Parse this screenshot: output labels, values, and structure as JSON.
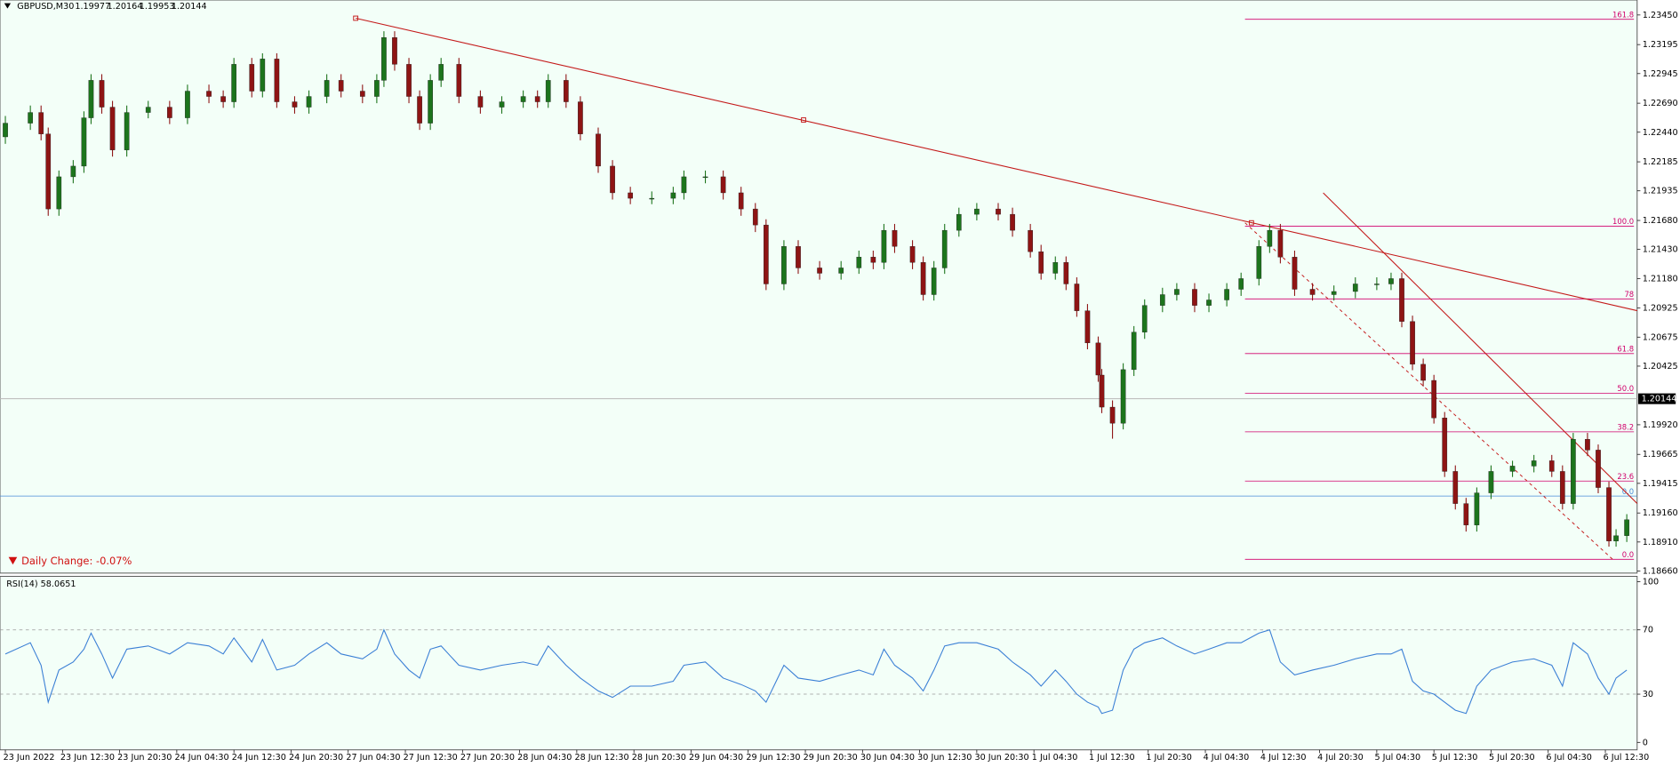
{
  "chart_data": [
    {
      "type": "candlestick",
      "symbol": "GBPUSD,M30",
      "ohlc": [
        1.19977,
        1.20164,
        1.19953,
        1.20144
      ],
      "current_price": 1.20144,
      "daily_change": "Daily Change: -0.07%",
      "bull_color": "#1c741c",
      "bear_color": "#8e1414",
      "xlim": [
        0,
        456
      ],
      "ylim": [
        1.18642,
        1.23579
      ],
      "yticks": [
        {
          "value": 1.2345,
          "label": "1.23450"
        },
        1.23195,
        1.22945,
        {
          "value": 1.2269,
          "label": "1.22690"
        },
        {
          "value": 1.2244,
          "label": "1.22440"
        },
        1.22185,
        1.21935,
        {
          "value": 1.2168,
          "label": "1.21680"
        },
        {
          "value": 1.2143,
          "label": "1.21430"
        },
        {
          "value": 1.2118,
          "label": "1.21180"
        },
        1.20925,
        1.20675,
        1.20425,
        {
          "value": 1.1992,
          "label": "1.19920"
        },
        1.19665,
        1.19415,
        {
          "value": 1.1916,
          "label": "1.19160"
        },
        {
          "value": 1.1891,
          "label": "1.18910"
        },
        {
          "value": 1.1866,
          "label": "1.18660"
        }
      ],
      "xticks": [
        {
          "value": 0,
          "label": "23 Jun 2022"
        },
        {
          "value": 16,
          "label": "23 Jun 12:30"
        },
        {
          "value": 32,
          "label": "23 Jun 20:30"
        },
        {
          "value": 48,
          "label": "24 Jun 04:30"
        },
        {
          "value": 64,
          "label": "24 Jun 12:30"
        },
        {
          "value": 80,
          "label": "24 Jun 20:30"
        },
        {
          "value": 96,
          "label": "27 Jun 04:30"
        },
        {
          "value": 112,
          "label": "27 Jun 12:30"
        },
        {
          "value": 128,
          "label": "27 Jun 20:30"
        },
        {
          "value": 144,
          "label": "28 Jun 04:30"
        },
        {
          "value": 160,
          "label": "28 Jun 12:30"
        },
        {
          "value": 176,
          "label": "28 Jun 20:30"
        },
        {
          "value": 192,
          "label": "29 Jun 04:30"
        },
        {
          "value": 208,
          "label": "29 Jun 12:30"
        },
        {
          "value": 224,
          "label": "29 Jun 20:30"
        },
        {
          "value": 240,
          "label": "30 Jun 04:30"
        },
        {
          "value": 256,
          "label": "30 Jun 12:30"
        },
        {
          "value": 272,
          "label": "30 Jun 20:30"
        },
        {
          "value": 288,
          "label": "1 Jul 04:30"
        },
        {
          "value": 304,
          "label": "1 Jul 12:30"
        },
        {
          "value": 320,
          "label": "1 Jul 20:30"
        },
        {
          "value": 336,
          "label": "4 Jul 04:30"
        },
        {
          "value": 352,
          "label": "4 Jul 12:30"
        },
        {
          "value": 368,
          "label": "4 Jul 20:30"
        },
        {
          "value": 384,
          "label": "5 Jul 04:30"
        },
        {
          "value": 400,
          "label": "5 Jul 12:30"
        },
        {
          "value": 416,
          "label": "5 Jul 20:30"
        },
        {
          "value": 432,
          "label": "6 Jul 04:30"
        },
        {
          "value": 448,
          "label": "6 Jul 12:30"
        }
      ],
      "fib_levels": [
        {
          "label": "161.8",
          "value": 1.23413
        },
        {
          "label": "100.0",
          "value": 1.21631
        },
        {
          "label": "78",
          "value": 1.21004
        },
        {
          "label": "61.8",
          "value": 1.20533
        },
        {
          "label": "50.0",
          "value": 1.20192
        },
        {
          "label": "38.2",
          "value": 1.19859
        },
        {
          "label": "23.6",
          "value": 1.19435
        },
        {
          "label": "0.0",
          "value": 1.18761
        }
      ],
      "blue_level": {
        "label": "0.0",
        "value": 1.19306
      },
      "x": [
        0,
        7,
        10,
        12,
        15,
        19,
        22,
        24,
        27,
        30,
        34,
        40,
        46,
        51,
        57,
        61,
        64,
        69,
        72,
        76,
        81,
        85,
        90,
        94,
        100,
        104,
        106,
        109,
        113,
        116,
        119,
        122,
        127,
        133,
        139,
        145,
        149,
        152,
        157,
        161,
        166,
        170,
        175,
        181,
        187,
        190,
        196,
        201,
        206,
        210,
        213,
        218,
        222,
        228,
        234,
        239,
        243,
        246,
        249,
        254,
        257,
        260,
        263,
        267,
        272,
        278,
        282,
        287,
        290,
        294,
        297,
        300,
        303,
        306,
        307,
        310,
        313,
        316,
        319,
        324,
        328,
        333,
        337,
        342,
        346,
        351,
        354,
        357,
        361,
        366,
        372,
        378,
        384,
        388,
        391,
        394,
        397,
        400,
        403,
        406,
        409,
        412,
        416,
        422,
        428,
        433,
        436,
        439,
        443,
        446,
        449,
        451,
        454
      ],
      "open": [
        1.224,
        1.22518,
        1.2261,
        1.22425,
        1.21779,
        1.22056,
        1.22148,
        1.22564,
        1.22887,
        1.22656,
        1.22287,
        1.2261,
        1.22656,
        1.22564,
        1.22794,
        1.22748,
        1.22702,
        1.23025,
        1.22794,
        1.23071,
        1.22702,
        1.22656,
        1.22748,
        1.22887,
        1.22794,
        1.22748,
        1.22887,
        1.23256,
        1.23025,
        1.22748,
        1.22518,
        1.22887,
        1.23025,
        1.22748,
        1.22656,
        1.22702,
        1.22748,
        1.22702,
        1.22887,
        1.22702,
        1.22425,
        1.22148,
        1.21918,
        1.21871,
        1.21871,
        1.21918,
        1.22056,
        1.22056,
        1.21918,
        1.21779,
        1.21641,
        1.21133,
        1.21456,
        1.21271,
        1.21225,
        1.21271,
        1.21364,
        1.21318,
        1.21595,
        1.21456,
        1.21318,
        1.21041,
        1.21271,
        1.21595,
        1.21733,
        1.21779,
        1.21733,
        1.21595,
        1.2141,
        1.21225,
        1.21318,
        1.21133,
        1.20902,
        1.20625,
        1.20348,
        1.20072,
        1.19933,
        1.20395,
        1.20718,
        1.20948,
        1.21041,
        1.21087,
        1.20948,
        1.20995,
        1.21087,
        1.21179,
        1.21456,
        1.21595,
        1.21364,
        1.21087,
        1.21041,
        1.21068,
        1.21133,
        1.21133,
        1.21179,
        1.2081,
        1.20441,
        1.20302,
        1.19979,
        1.19518,
        1.19241,
        1.19056,
        1.19333,
        1.19518,
        1.19564,
        1.1961,
        1.19518,
        1.19241,
        1.19795,
        1.19702,
        1.19379,
        1.18918,
        1.18964
      ],
      "high": [
        1.2258,
        1.2267,
        1.2267,
        1.2248,
        1.2211,
        1.222,
        1.2262,
        1.2294,
        1.2294,
        1.2271,
        1.2267,
        1.2271,
        1.2271,
        1.2285,
        1.2285,
        1.228,
        1.2308,
        1.2308,
        1.2312,
        1.2312,
        1.2275,
        1.228,
        1.2294,
        1.2294,
        1.2285,
        1.2294,
        1.2331,
        1.2331,
        1.2308,
        1.228,
        1.2294,
        1.2308,
        1.2308,
        1.228,
        1.2275,
        1.228,
        1.228,
        1.2294,
        1.2294,
        1.2275,
        1.2248,
        1.222,
        1.2197,
        1.2193,
        1.2197,
        1.2211,
        1.2211,
        1.2211,
        1.2197,
        1.2183,
        1.2169,
        1.2151,
        1.2151,
        1.2133,
        1.2133,
        1.2142,
        1.2142,
        1.2165,
        1.2165,
        1.2151,
        1.2137,
        1.2133,
        1.2165,
        1.2179,
        1.2183,
        1.2183,
        1.2179,
        1.2165,
        1.2147,
        1.2137,
        1.2137,
        1.2119,
        1.2096,
        1.2068,
        1.204,
        1.2013,
        1.2045,
        1.2077,
        1.21,
        1.211,
        1.2114,
        1.2114,
        1.2105,
        1.2114,
        1.2123,
        1.2151,
        1.2165,
        1.2165,
        1.2142,
        1.2114,
        1.2112,
        1.2119,
        1.2119,
        1.2123,
        1.2123,
        1.2086,
        1.2049,
        1.2035,
        1.2003,
        1.1957,
        1.1929,
        1.1938,
        1.1957,
        1.1961,
        1.1966,
        1.1966,
        1.1957,
        1.1985,
        1.1985,
        1.1975,
        1.1943,
        1.1902,
        1.1915
      ],
      "low": [
        1.2234,
        1.2246,
        1.2237,
        1.2172,
        1.2172,
        1.22,
        1.2209,
        1.2251,
        1.226,
        1.2223,
        1.2223,
        1.2256,
        1.2251,
        1.2251,
        1.2269,
        1.2265,
        1.2265,
        1.2274,
        1.2274,
        1.2265,
        1.226,
        1.226,
        1.2269,
        1.2274,
        1.2269,
        1.2269,
        1.2283,
        1.2297,
        1.2269,
        1.2246,
        1.2246,
        1.2283,
        1.2269,
        1.226,
        1.226,
        1.2265,
        1.2265,
        1.2265,
        1.2265,
        1.2237,
        1.2209,
        1.2186,
        1.2182,
        1.2182,
        1.2182,
        1.2186,
        1.22,
        1.2186,
        1.2172,
        1.2158,
        1.2108,
        1.2108,
        1.2122,
        1.2117,
        1.2117,
        1.2122,
        1.2126,
        1.2126,
        1.214,
        1.2126,
        1.2099,
        1.2099,
        1.2122,
        1.2154,
        1.2168,
        1.2168,
        1.2154,
        1.2136,
        1.2117,
        1.2117,
        1.2108,
        1.2085,
        1.2057,
        1.2029,
        1.2002,
        1.198,
        1.1988,
        1.2034,
        1.2066,
        1.2089,
        1.2099,
        1.2089,
        1.2089,
        1.2094,
        1.2103,
        1.2112,
        1.214,
        1.2131,
        1.2103,
        1.2099,
        1.2099,
        1.2101,
        1.2108,
        1.2108,
        1.2076,
        1.2039,
        1.2025,
        1.1993,
        1.1947,
        1.1919,
        1.19,
        1.19,
        1.1928,
        1.1947,
        1.1951,
        1.1947,
        1.1919,
        1.1919,
        1.1965,
        1.1933,
        1.1887,
        1.1887,
        1.1891
      ],
      "close": [
        1.22518,
        1.2261,
        1.22425,
        1.21779,
        1.22056,
        1.22148,
        1.22564,
        1.22887,
        1.22656,
        1.22287,
        1.2261,
        1.22656,
        1.22564,
        1.22794,
        1.22748,
        1.22702,
        1.23025,
        1.22794,
        1.23071,
        1.22702,
        1.22656,
        1.22748,
        1.22887,
        1.22794,
        1.22748,
        1.22887,
        1.23256,
        1.23025,
        1.22748,
        1.22518,
        1.22887,
        1.23025,
        1.22748,
        1.22656,
        1.22702,
        1.22748,
        1.22702,
        1.22887,
        1.22702,
        1.22425,
        1.22148,
        1.21918,
        1.21871,
        1.21871,
        1.21918,
        1.22056,
        1.22056,
        1.21918,
        1.21779,
        1.21641,
        1.21133,
        1.21456,
        1.21271,
        1.21225,
        1.21271,
        1.21364,
        1.21318,
        1.21595,
        1.21456,
        1.21318,
        1.21041,
        1.21271,
        1.21595,
        1.21733,
        1.21779,
        1.21733,
        1.21595,
        1.2141,
        1.21225,
        1.21318,
        1.21133,
        1.20902,
        1.20625,
        1.20348,
        1.20072,
        1.19933,
        1.20395,
        1.20718,
        1.20948,
        1.21041,
        1.21087,
        1.20948,
        1.20995,
        1.21087,
        1.21179,
        1.21456,
        1.21595,
        1.21364,
        1.21087,
        1.21041,
        1.21068,
        1.21133,
        1.21133,
        1.21179,
        1.2081,
        1.20441,
        1.20302,
        1.19979,
        1.19518,
        1.19241,
        1.19056,
        1.19333,
        1.19518,
        1.19564,
        1.1961,
        1.19518,
        1.19241,
        1.19795,
        1.19702,
        1.19379,
        1.18918,
        1.18964,
        1.19102
      ]
    },
    {
      "type": "line",
      "label": "RSI(14) 58.0651",
      "color": "#3a7fd5",
      "ylim": [
        0,
        100
      ],
      "yticks": [
        100,
        70,
        30,
        0
      ],
      "levels": [
        70,
        30
      ],
      "values": [
        55,
        62,
        48,
        25,
        45,
        50,
        58,
        68,
        55,
        40,
        58,
        60,
        55,
        62,
        60,
        55,
        65,
        50,
        64,
        45,
        48,
        55,
        62,
        55,
        52,
        58,
        70,
        55,
        45,
        40,
        58,
        60,
        48,
        45,
        48,
        50,
        48,
        60,
        48,
        40,
        32,
        28,
        35,
        35,
        38,
        48,
        50,
        40,
        36,
        32,
        25,
        48,
        40,
        38,
        42,
        45,
        42,
        58,
        48,
        40,
        32,
        45,
        60,
        62,
        62,
        58,
        50,
        42,
        35,
        45,
        38,
        30,
        25,
        22,
        18,
        20,
        45,
        58,
        62,
        65,
        60,
        55,
        58,
        62,
        62,
        68,
        70,
        50,
        42,
        45,
        48,
        52,
        55,
        55,
        58,
        38,
        32,
        30,
        25,
        20,
        18,
        35,
        45,
        50,
        52,
        48,
        35,
        62,
        55,
        40,
        30,
        40,
        45
      ]
    }
  ]
}
